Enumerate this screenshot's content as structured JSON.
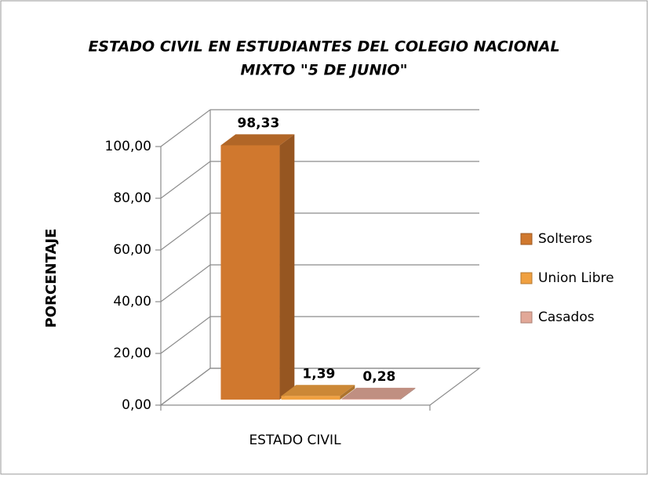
{
  "chart_data": {
    "type": "bar3d",
    "title": [
      "ESTADO CIVIL EN ESTUDIANTES DEL COLEGIO NACIONAL",
      "MIXTO \"5 DE JUNIO\""
    ],
    "x_label": "ESTADO CIVIL",
    "y_label": "PORCENTAJE",
    "series": [
      {
        "name": "Solteros",
        "color": "#d0782e",
        "values": [
          98.33
        ],
        "value_labels": [
          "98,33"
        ]
      },
      {
        "name": "Union Libre",
        "color": "#f0a040",
        "values": [
          1.39
        ],
        "value_labels": [
          "1,39"
        ]
      },
      {
        "name": "Casados",
        "color": "#e2a898",
        "values": [
          0.28
        ],
        "value_labels": [
          "0,28"
        ]
      }
    ],
    "ylim": [
      0,
      100
    ],
    "yticks": [
      {
        "value": 0,
        "label": "0,00"
      },
      {
        "value": 20,
        "label": "20,00"
      },
      {
        "value": 40,
        "label": "40,00"
      },
      {
        "value": 60,
        "label": "60,00"
      },
      {
        "value": 80,
        "label": "80,00"
      },
      {
        "value": 100,
        "label": "100,00"
      }
    ],
    "legend": "right"
  }
}
